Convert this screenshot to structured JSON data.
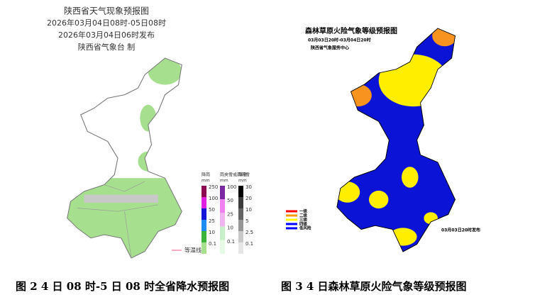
{
  "left_map": {
    "title": "陕西省天气现象预报图",
    "period": "2026年03月04日08时-05日08时",
    "issued": "2026年03月04日06时发布",
    "agency": "陕西省气象台 制",
    "legend": [
      {
        "title": "降雨",
        "unit": "mm",
        "ticks": [
          "250",
          "100",
          "50",
          "25",
          "10",
          "0.1"
        ]
      },
      {
        "title": "雨夹雪或雨转雪",
        "unit": "mm",
        "ticks": [
          "100",
          "50",
          "25",
          "10",
          "0.1"
        ]
      },
      {
        "title": "降雪",
        "unit": "mm",
        "ticks": [
          "30",
          "20",
          "10",
          "5",
          "2.5",
          "0.1"
        ]
      }
    ],
    "isoline": "等温线"
  },
  "right_map": {
    "title": "森林草原火险气象等级预报图",
    "period": "03月03日20时-03月04日20时",
    "agency": "陕西省气象服务中心",
    "legend": [
      "一级",
      "二级",
      "三级",
      "四级",
      "低风险"
    ],
    "issued": "03月03日20时发布"
  },
  "captions": [
    "图 2 4 日 08 时-5 日 08 时全省降水预报图",
    "图 3 4 日森林草原火险气象等级预报图"
  ]
}
